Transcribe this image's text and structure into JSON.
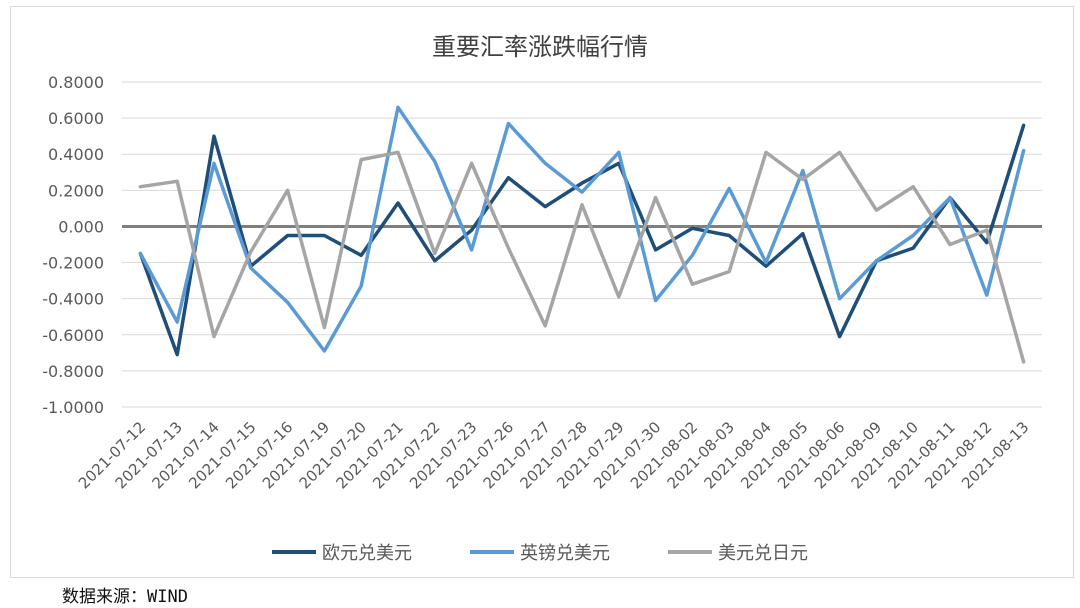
{
  "source_text": "数据来源：WIND",
  "colors": {
    "eur_usd": "#1f4e79",
    "gbp_usd": "#5b9bd5",
    "usd_jpy": "#a5a5a5",
    "zero_line": "#7f7f7f",
    "grid": "#d9d9d9",
    "text": "#595959"
  },
  "chart_data": {
    "type": "line",
    "title": "重要汇率涨跌幅行情",
    "xlabel": "",
    "ylabel": "",
    "ylim": [
      -1.0,
      0.8
    ],
    "yticks": [
      "0.8000",
      "0.6000",
      "0.4000",
      "0.2000",
      "0.000",
      "-0.2000",
      "-0.4000",
      "-0.6000",
      "-0.8000",
      "-1.0000"
    ],
    "ytick_values": [
      0.8,
      0.6,
      0.4,
      0.2,
      0.0,
      -0.2,
      -0.4,
      -0.6,
      -0.8,
      -1.0
    ],
    "grid": true,
    "legend_position": "bottom",
    "categories": [
      "2021-07-12",
      "2021-07-13",
      "2021-07-14",
      "2021-07-15",
      "2021-07-16",
      "2021-07-19",
      "2021-07-20",
      "2021-07-21",
      "2021-07-22",
      "2021-07-23",
      "2021-07-26",
      "2021-07-27",
      "2021-07-28",
      "2021-07-29",
      "2021-07-30",
      "2021-08-02",
      "2021-08-03",
      "2021-08-04",
      "2021-08-05",
      "2021-08-06",
      "2021-08-09",
      "2021-08-10",
      "2021-08-11",
      "2021-08-12",
      "2021-08-13"
    ],
    "series": [
      {
        "name": "欧元兑美元",
        "color": "#1f4e79",
        "values": [
          -0.15,
          -0.71,
          0.5,
          -0.22,
          -0.05,
          -0.05,
          -0.16,
          0.13,
          -0.19,
          -0.02,
          0.27,
          0.11,
          0.24,
          0.35,
          -0.13,
          -0.01,
          -0.05,
          -0.22,
          -0.04,
          -0.61,
          -0.19,
          -0.12,
          0.16,
          -0.09,
          0.56
        ]
      },
      {
        "name": "英镑兑美元",
        "color": "#5b9bd5",
        "values": [
          -0.15,
          -0.53,
          0.35,
          -0.23,
          -0.42,
          -0.69,
          -0.33,
          0.66,
          0.36,
          -0.13,
          0.57,
          0.35,
          0.19,
          0.41,
          -0.41,
          -0.16,
          0.21,
          -0.2,
          0.31,
          -0.4,
          -0.19,
          -0.05,
          0.16,
          -0.38,
          0.42
        ]
      },
      {
        "name": "美元兑日元",
        "color": "#a5a5a5",
        "values": [
          0.22,
          0.25,
          -0.61,
          -0.14,
          0.2,
          -0.56,
          0.37,
          0.41,
          -0.15,
          0.35,
          -0.12,
          -0.55,
          0.12,
          -0.39,
          0.16,
          -0.32,
          -0.25,
          0.41,
          0.26,
          0.41,
          0.09,
          0.22,
          -0.1,
          -0.02,
          -0.75
        ]
      }
    ]
  }
}
